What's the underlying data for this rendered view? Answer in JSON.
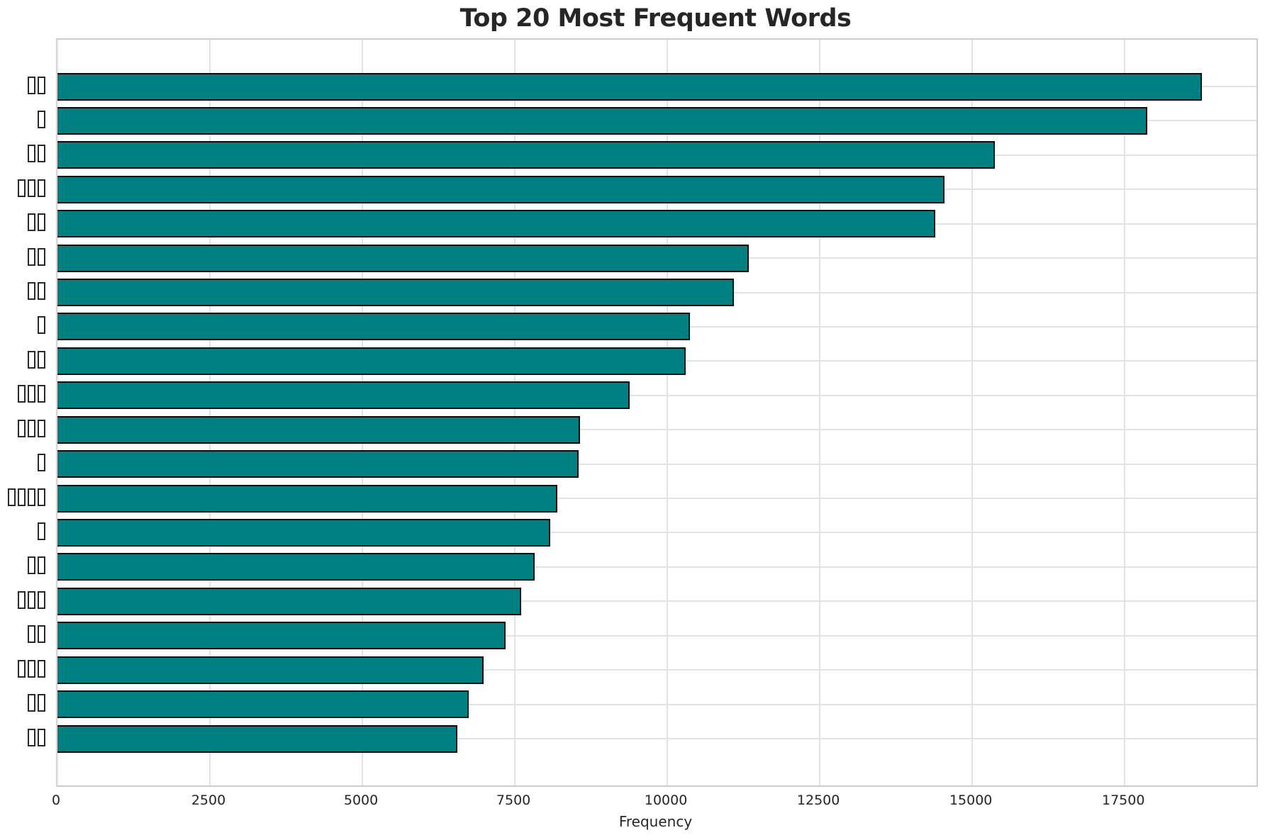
{
  "title": "Top 20 Most Frequent Words",
  "chart_data": {
    "type": "bar",
    "orientation": "horizontal",
    "title": "Top 20 Most Frequent Words",
    "xlabel": "Frequency",
    "ylabel": "",
    "xlim": [
      0,
      19660
    ],
    "x_ticks": [
      0,
      2500,
      5000,
      7500,
      10000,
      12500,
      15000,
      17500
    ],
    "grid": true,
    "legend": "none",
    "note": "Y-axis category labels are words whose glyphs are not renderable (shown as hollow tofu boxes in the original image)",
    "categories": [
      "□□",
      "□",
      "□□",
      "□□□",
      "□□",
      "□□",
      "□□",
      "□",
      "□□",
      "□□□",
      "□□□",
      "□",
      "□□□□",
      "□",
      "□□",
      "□□□",
      "□□",
      "□□□",
      "□□",
      "□□"
    ],
    "category_glyph_counts": [
      2,
      1,
      2,
      3,
      2,
      2,
      2,
      1,
      2,
      3,
      3,
      1,
      4,
      1,
      2,
      3,
      2,
      3,
      2,
      2
    ],
    "values": [
      18770,
      17870,
      15370,
      14550,
      14390,
      11340,
      11090,
      10370,
      10300,
      9380,
      8570,
      8550,
      8200,
      8080,
      7820,
      7600,
      7350,
      6990,
      6740,
      6560
    ]
  },
  "colors": {
    "bar_fill": "#008080",
    "bar_edge": "#0d0d0d",
    "grid_line": "#e3e3e3",
    "frame": "#cccccc",
    "text": "#262626",
    "background": "#ffffff"
  }
}
